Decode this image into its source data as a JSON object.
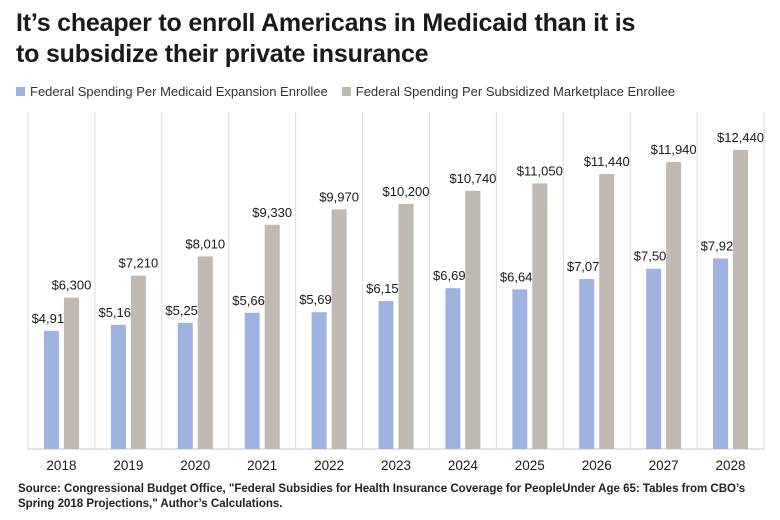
{
  "title_line1": "It’s cheaper to enroll Americans in Medicaid than it is",
  "title_line2": "to subsidize their private insurance",
  "source_line1": "Source: Congressional Budget Office, \"Federal Subsidies for Health Insurance Coverage for PeopleUnder Age 65: Tables from CBO’s",
  "source_line2": "Spring 2018 Projections,\" Author’s Calculations.",
  "chart_data": {
    "type": "bar",
    "title": "It’s cheaper to enroll Americans in Medicaid than it is to subsidize their private insurance",
    "xlabel": "",
    "ylabel": "",
    "categories": [
      "2018",
      "2019",
      "2020",
      "2021",
      "2022",
      "2023",
      "2024",
      "2025",
      "2026",
      "2027",
      "2028"
    ],
    "series": [
      {
        "name": "Federal Spending Per Medicaid Expansion Enrollee",
        "color": "#9fb3e0",
        "values": [
          4917,
          5167,
          5250,
          5667,
          5692,
          6154,
          6692,
          6643,
          7071,
          7500,
          7929
        ],
        "labels": [
          "$4,917",
          "$5,167",
          "$5,250",
          "$5,667",
          "$5,692",
          "$6,154",
          "$6,692",
          "$6,643",
          "$7,071",
          "$7,500",
          "$7,929"
        ]
      },
      {
        "name": "Federal Spending Per Subsidized Marketplace Enrollee",
        "color": "#bfb9b1",
        "values": [
          6300,
          7210,
          8010,
          9330,
          9970,
          10200,
          10740,
          11050,
          11440,
          11940,
          12440
        ],
        "labels": [
          "$6,300",
          "$7,210",
          "$8,010",
          "$9,330",
          "$9,970",
          "$10,200",
          "$10,740",
          "$11,050",
          "$11,440",
          "$11,940",
          "$12,440"
        ]
      }
    ],
    "ylim": [
      0,
      14000
    ],
    "grid": "vertical separators",
    "legend_position": "top"
  }
}
